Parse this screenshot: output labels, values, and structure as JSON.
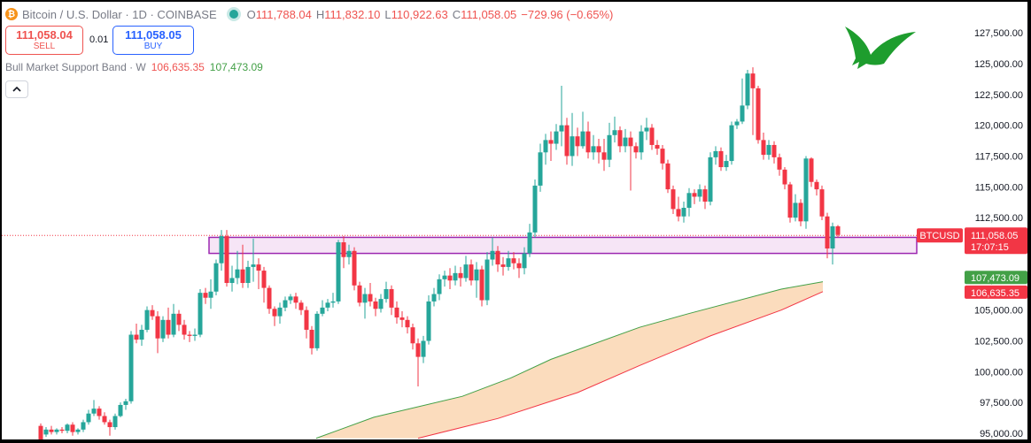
{
  "header": {
    "symbol_title": "Bitcoin / U.S. Dollar · 1D · COINBASE",
    "ohlc": [
      {
        "key": "O",
        "value": "111,788.04"
      },
      {
        "key": "H",
        "value": "111,832.10"
      },
      {
        "key": "L",
        "value": "110,922.63"
      },
      {
        "key": "C",
        "value": "111,058.05"
      }
    ],
    "change": "−729.96 (−0.65%)"
  },
  "trade": {
    "sell_price": "111,058.04",
    "sell_label": "SELL",
    "spread": "0.01",
    "buy_price": "111,058.05",
    "buy_label": "BUY"
  },
  "indicator": {
    "name": "Bull Market Support Band · W",
    "value_red": "106,635.35",
    "value_green": "107,473.09"
  },
  "colors": {
    "up": "#26a69a",
    "down": "#f23645",
    "zone_fill": "#f3dcf3",
    "zone_border": "#9c27b0",
    "band_fill": "#fbdcbd",
    "band_green": "#43a047",
    "band_red": "#f23645",
    "logo_green": "#1e9d2e"
  },
  "icons": [
    "bitcoin-icon",
    "live-status-icon",
    "chevron-up-icon",
    "bird-logo-icon"
  ],
  "chart_data": {
    "type": "candlestick",
    "y_axis": {
      "ticks": [
        95000,
        97500,
        100000,
        102500,
        105000,
        107500,
        110000,
        112500,
        115000,
        117500,
        120000,
        122500,
        125000,
        127500
      ],
      "tick_labels": [
        "95,000.00",
        "97,500.00",
        "100,000.00",
        "102,500.00",
        "105,000.00",
        "107,500.00",
        "110,000.00",
        "112,500.00",
        "115,000.00",
        "117,500.00",
        "120,000.00",
        "122,500.00",
        "125,000.00",
        "127,500.00"
      ],
      "range": [
        94500,
        130000
      ]
    },
    "price_tags": [
      {
        "label": "BTCUSD",
        "value": "111,058.05",
        "countdown": "17:07:15",
        "price": 111058.05,
        "color": "#f23645"
      },
      {
        "value": "107,473.09",
        "price": 107473.09,
        "color": "#43a047"
      },
      {
        "value": "106,635.35",
        "price": 106635.35,
        "color": "#f23645"
      }
    ],
    "last_price_line": 111058.05,
    "zone": {
      "top": 110900,
      "bottom": 109600
    },
    "band_green": [
      [
        355,
        94600
      ],
      [
        420,
        96300
      ],
      [
        520,
        98000
      ],
      [
        575,
        99500
      ],
      [
        620,
        101000
      ],
      [
        720,
        103600
      ],
      [
        775,
        104700
      ],
      [
        880,
        106700
      ],
      [
        927,
        107300
      ]
    ],
    "band_red": [
      [
        470,
        94600
      ],
      [
        560,
        96200
      ],
      [
        650,
        98300
      ],
      [
        720,
        100500
      ],
      [
        800,
        102900
      ],
      [
        880,
        105000
      ],
      [
        927,
        106500
      ]
    ],
    "candles": [
      [
        44,
        95600,
        94500,
        95800,
        94300
      ],
      [
        50,
        94900,
        95300,
        95500,
        94700
      ],
      [
        56,
        95300,
        95100,
        95600,
        94900
      ],
      [
        62,
        95100,
        95300,
        95400,
        94900
      ],
      [
        68,
        95300,
        95200,
        95500,
        95000
      ],
      [
        74,
        95200,
        95700,
        95800,
        95000
      ],
      [
        80,
        95700,
        95100,
        95900,
        94800
      ],
      [
        86,
        95100,
        95300,
        95400,
        94900
      ],
      [
        92,
        95300,
        95900,
        96100,
        95100
      ],
      [
        98,
        95900,
        96600,
        96900,
        95700
      ],
      [
        104,
        96600,
        97000,
        97700,
        96400
      ],
      [
        110,
        97000,
        96400,
        97200,
        96100
      ],
      [
        116,
        96400,
        95900,
        96700,
        95700
      ],
      [
        122,
        95900,
        95500,
        96100,
        94800
      ],
      [
        128,
        95500,
        96400,
        96600,
        95300
      ],
      [
        134,
        96400,
        97300,
        97500,
        96300
      ],
      [
        140,
        97300,
        97600,
        97800,
        96900
      ],
      [
        146,
        97600,
        103000,
        103300,
        97400
      ],
      [
        152,
        103000,
        102600,
        103900,
        102300
      ],
      [
        158,
        102600,
        103400,
        103800,
        102100
      ],
      [
        164,
        103400,
        105000,
        105300,
        103200
      ],
      [
        170,
        105000,
        104500,
        105400,
        104200
      ],
      [
        176,
        104500,
        102700,
        104900,
        101500
      ],
      [
        182,
        102700,
        104200,
        104500,
        102400
      ],
      [
        188,
        104200,
        103000,
        105200,
        102700
      ],
      [
        194,
        103000,
        104700,
        105500,
        102800
      ],
      [
        200,
        104700,
        103800,
        105000,
        103300
      ],
      [
        206,
        103800,
        103000,
        104200,
        102600
      ],
      [
        212,
        103000,
        102900,
        103300,
        102400
      ],
      [
        218,
        102900,
        103000,
        103500,
        102500
      ],
      [
        224,
        103000,
        106400,
        106700,
        102800
      ],
      [
        230,
        106400,
        106000,
        106800,
        105500
      ],
      [
        236,
        106000,
        106500,
        107500,
        105100
      ],
      [
        242,
        106500,
        108800,
        109100,
        106200
      ],
      [
        248,
        108800,
        111000,
        111500,
        108200
      ],
      [
        254,
        111000,
        107200,
        111500,
        106900
      ],
      [
        260,
        107200,
        107600,
        108600,
        106500
      ],
      [
        266,
        107600,
        108300,
        109800,
        107100
      ],
      [
        272,
        108300,
        107200,
        110300,
        106800
      ],
      [
        278,
        107200,
        108500,
        109000,
        106800
      ],
      [
        284,
        108500,
        108700,
        110800,
        107300
      ],
      [
        290,
        108700,
        108200,
        109200,
        106700
      ],
      [
        296,
        108200,
        106800,
        108500,
        105600
      ],
      [
        302,
        106800,
        105100,
        107000,
        104700
      ],
      [
        308,
        105100,
        104500,
        105300,
        103700
      ],
      [
        314,
        104500,
        105200,
        105600,
        103900
      ],
      [
        320,
        105200,
        105800,
        106100,
        104900
      ],
      [
        326,
        105800,
        106100,
        106300,
        105500
      ],
      [
        332,
        106100,
        105600,
        106400,
        105100
      ],
      [
        338,
        105600,
        105000,
        105800,
        104600
      ],
      [
        344,
        105000,
        103400,
        105300,
        102700
      ],
      [
        350,
        103400,
        101900,
        103700,
        101400
      ],
      [
        356,
        101900,
        104700,
        104900,
        101700
      ],
      [
        362,
        104700,
        105200,
        105800,
        104500
      ],
      [
        368,
        105200,
        105600,
        105900,
        104900
      ],
      [
        374,
        105600,
        105700,
        106400,
        105200
      ],
      [
        380,
        105700,
        110500,
        110700,
        105500
      ],
      [
        386,
        110500,
        109300,
        111000,
        108400
      ],
      [
        392,
        109300,
        109800,
        110300,
        108700
      ],
      [
        398,
        109800,
        107000,
        110100,
        106600
      ],
      [
        404,
        107000,
        105600,
        107300,
        105300
      ],
      [
        410,
        105600,
        106300,
        106800,
        104300
      ],
      [
        416,
        106300,
        105700,
        107200,
        105300
      ],
      [
        422,
        105700,
        105100,
        106000,
        104500
      ],
      [
        428,
        105100,
        105900,
        106300,
        104800
      ],
      [
        434,
        105900,
        106700,
        107300,
        105600
      ],
      [
        440,
        106700,
        105200,
        107000,
        104600
      ],
      [
        446,
        105200,
        104400,
        105700,
        103900
      ],
      [
        452,
        104400,
        104200,
        104900,
        103600
      ],
      [
        458,
        104200,
        103600,
        104500,
        103100
      ],
      [
        464,
        103600,
        102300,
        103900,
        101800
      ],
      [
        470,
        102300,
        101200,
        102700,
        98800
      ],
      [
        476,
        101200,
        102500,
        102900,
        100700
      ],
      [
        482,
        102500,
        105700,
        106200,
        102200
      ],
      [
        488,
        105700,
        106300,
        106800,
        105300
      ],
      [
        494,
        106300,
        107500,
        107900,
        105800
      ],
      [
        500,
        107500,
        107800,
        108200,
        106900
      ],
      [
        506,
        107800,
        107400,
        108400,
        106700
      ],
      [
        512,
        107400,
        108000,
        108600,
        107000
      ],
      [
        518,
        108000,
        107600,
        108500,
        106900
      ],
      [
        524,
        107600,
        108700,
        109400,
        107300
      ],
      [
        530,
        108700,
        107400,
        109100,
        107000
      ],
      [
        536,
        107400,
        108300,
        108900,
        106000
      ],
      [
        542,
        108300,
        105800,
        108600,
        105300
      ],
      [
        548,
        105800,
        109100,
        109700,
        105400
      ],
      [
        554,
        109100,
        109800,
        110900,
        108600
      ],
      [
        560,
        109800,
        108700,
        110200,
        108100
      ],
      [
        566,
        108700,
        108500,
        109300,
        107800
      ],
      [
        572,
        108500,
        109200,
        109800,
        108200
      ],
      [
        578,
        109200,
        108800,
        109700,
        108300
      ],
      [
        584,
        108800,
        108400,
        109200,
        107600
      ],
      [
        590,
        108400,
        109600,
        110100,
        107900
      ],
      [
        596,
        109600,
        111300,
        112000,
        109300
      ],
      [
        602,
        111300,
        115100,
        115600,
        110900
      ],
      [
        608,
        115100,
        117800,
        118500,
        114600
      ],
      [
        614,
        117800,
        118800,
        119300,
        116800
      ],
      [
        620,
        118800,
        118500,
        119500,
        117100
      ],
      [
        626,
        118500,
        119500,
        120100,
        118000
      ],
      [
        632,
        119500,
        120000,
        123200,
        118300
      ],
      [
        638,
        120000,
        117500,
        120600,
        116800
      ],
      [
        644,
        117500,
        119100,
        121000,
        116700
      ],
      [
        650,
        119100,
        118300,
        119800,
        117500
      ],
      [
        656,
        118300,
        119500,
        121100,
        118100
      ],
      [
        662,
        119500,
        117800,
        120300,
        117300
      ],
      [
        668,
        117800,
        118300,
        119200,
        117200
      ],
      [
        674,
        118300,
        117800,
        118900,
        116900
      ],
      [
        680,
        117800,
        117200,
        118900,
        116300
      ],
      [
        686,
        117200,
        119200,
        120200,
        116600
      ],
      [
        692,
        119200,
        119600,
        120700,
        118600
      ],
      [
        698,
        119600,
        118300,
        119900,
        117800
      ],
      [
        704,
        118300,
        119000,
        119700,
        117800
      ],
      [
        710,
        119000,
        118300,
        119500,
        114700
      ],
      [
        716,
        118300,
        117800,
        118600,
        117300
      ],
      [
        722,
        117800,
        119500,
        120000,
        117200
      ],
      [
        728,
        119500,
        119800,
        120600,
        118800
      ],
      [
        734,
        119800,
        118400,
        120100,
        118000
      ],
      [
        740,
        118400,
        118100,
        118800,
        117600
      ],
      [
        746,
        118100,
        116900,
        118400,
        116400
      ],
      [
        752,
        116900,
        114800,
        117200,
        114500
      ],
      [
        758,
        114800,
        113200,
        115100,
        112800
      ],
      [
        764,
        113200,
        112600,
        114200,
        112200
      ],
      [
        770,
        112600,
        113300,
        113800,
        112100
      ],
      [
        776,
        113300,
        114500,
        114900,
        112600
      ],
      [
        782,
        114500,
        114200,
        114800,
        113600
      ],
      [
        788,
        114200,
        114800,
        115200,
        113800
      ],
      [
        794,
        114800,
        113800,
        115100,
        113200
      ],
      [
        800,
        113800,
        117400,
        117800,
        113500
      ],
      [
        806,
        117400,
        117900,
        118300,
        116800
      ],
      [
        812,
        117900,
        116600,
        118200,
        116300
      ],
      [
        818,
        116600,
        117100,
        117600,
        116300
      ],
      [
        824,
        117100,
        120000,
        120300,
        116800
      ],
      [
        830,
        120000,
        120300,
        120500,
        119700
      ],
      [
        836,
        120300,
        121600,
        123800,
        120100
      ],
      [
        842,
        121600,
        124200,
        124500,
        121300
      ],
      [
        848,
        124200,
        123000,
        124700,
        119200
      ],
      [
        854,
        123000,
        118800,
        123200,
        118500
      ],
      [
        860,
        118800,
        117600,
        119400,
        117200
      ],
      [
        866,
        117600,
        118400,
        118800,
        117200
      ],
      [
        872,
        118400,
        117400,
        118700,
        116900
      ],
      [
        878,
        117400,
        116400,
        117700,
        115900
      ],
      [
        884,
        116400,
        115200,
        116600,
        114800
      ],
      [
        890,
        115200,
        112500,
        115400,
        112100
      ],
      [
        896,
        112500,
        113700,
        114400,
        112200
      ],
      [
        902,
        113700,
        112200,
        114000,
        111800
      ],
      [
        908,
        112200,
        117300,
        117500,
        111600
      ],
      [
        914,
        117300,
        115400,
        117400,
        115000
      ],
      [
        920,
        115400,
        114800,
        115600,
        114300
      ],
      [
        926,
        114800,
        112600,
        115100,
        112300
      ],
      [
        932,
        112600,
        110000,
        112900,
        109200
      ],
      [
        938,
        110000,
        111800,
        112100,
        108700
      ],
      [
        944,
        111800,
        111100,
        111900,
        110900
      ]
    ]
  }
}
